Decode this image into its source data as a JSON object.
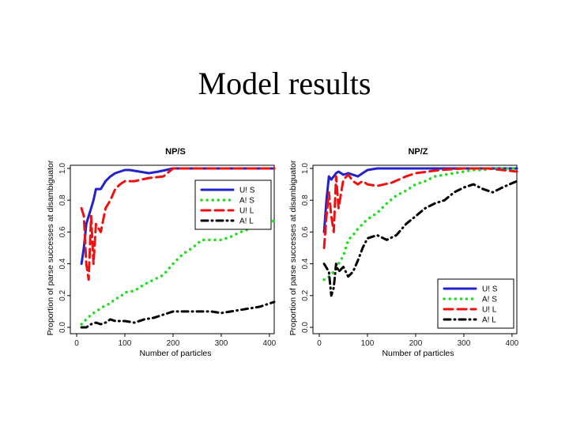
{
  "slide": {
    "title": "Model results"
  },
  "colors": {
    "U_S": "#2222cc",
    "A_S": "#22dd22",
    "U_L": "#ee1111",
    "A_L": "#000000"
  },
  "chart_data": [
    {
      "type": "line",
      "title": "NP/S",
      "xlabel": "Number of particles",
      "ylabel": "Proportion of parse successes at disambiguator",
      "xlim": [
        0,
        410
      ],
      "ylim": [
        0,
        1
      ],
      "xticks": [
        0,
        100,
        200,
        300,
        400
      ],
      "yticks": [
        0.0,
        0.2,
        0.4,
        0.6,
        0.8,
        1.0
      ],
      "legend_position": "center-right",
      "series": [
        {
          "name": "U! S",
          "key": "U_S",
          "style": "solid",
          "points": [
            [
              10,
              0.4
            ],
            [
              15,
              0.5
            ],
            [
              20,
              0.65
            ],
            [
              25,
              0.7
            ],
            [
              30,
              0.75
            ],
            [
              35,
              0.8
            ],
            [
              40,
              0.87
            ],
            [
              50,
              0.87
            ],
            [
              60,
              0.92
            ],
            [
              70,
              0.95
            ],
            [
              80,
              0.97
            ],
            [
              90,
              0.98
            ],
            [
              100,
              0.99
            ],
            [
              110,
              0.99
            ],
            [
              130,
              0.98
            ],
            [
              150,
              0.97
            ],
            [
              170,
              0.98
            ],
            [
              200,
              1.0
            ],
            [
              250,
              1.0
            ],
            [
              300,
              1.0
            ],
            [
              410,
              1.0
            ]
          ]
        },
        {
          "name": "A! S",
          "key": "A_S",
          "style": "dotted",
          "points": [
            [
              10,
              0.02
            ],
            [
              20,
              0.05
            ],
            [
              30,
              0.08
            ],
            [
              40,
              0.1
            ],
            [
              50,
              0.12
            ],
            [
              60,
              0.14
            ],
            [
              70,
              0.15
            ],
            [
              80,
              0.18
            ],
            [
              90,
              0.19
            ],
            [
              100,
              0.22
            ],
            [
              120,
              0.23
            ],
            [
              140,
              0.27
            ],
            [
              160,
              0.3
            ],
            [
              180,
              0.33
            ],
            [
              200,
              0.4
            ],
            [
              220,
              0.46
            ],
            [
              240,
              0.5
            ],
            [
              260,
              0.55
            ],
            [
              280,
              0.55
            ],
            [
              300,
              0.55
            ],
            [
              320,
              0.57
            ],
            [
              340,
              0.6
            ],
            [
              360,
              0.62
            ],
            [
              380,
              0.65
            ],
            [
              410,
              0.67
            ]
          ]
        },
        {
          "name": "U! L",
          "key": "U_L",
          "style": "dashed",
          "points": [
            [
              10,
              0.75
            ],
            [
              15,
              0.7
            ],
            [
              20,
              0.4
            ],
            [
              25,
              0.3
            ],
            [
              30,
              0.7
            ],
            [
              35,
              0.4
            ],
            [
              40,
              0.65
            ],
            [
              50,
              0.6
            ],
            [
              60,
              0.75
            ],
            [
              70,
              0.8
            ],
            [
              80,
              0.87
            ],
            [
              90,
              0.9
            ],
            [
              100,
              0.92
            ],
            [
              120,
              0.92
            ],
            [
              150,
              0.94
            ],
            [
              180,
              0.95
            ],
            [
              200,
              1.0
            ],
            [
              250,
              1.0
            ],
            [
              300,
              1.0
            ],
            [
              410,
              1.0
            ]
          ]
        },
        {
          "name": "A! L",
          "key": "A_L",
          "style": "dashdot",
          "points": [
            [
              10,
              0.0
            ],
            [
              20,
              0.0
            ],
            [
              30,
              0.02
            ],
            [
              40,
              0.03
            ],
            [
              50,
              0.02
            ],
            [
              60,
              0.03
            ],
            [
              70,
              0.05
            ],
            [
              80,
              0.04
            ],
            [
              100,
              0.04
            ],
            [
              120,
              0.03
            ],
            [
              140,
              0.05
            ],
            [
              160,
              0.06
            ],
            [
              180,
              0.08
            ],
            [
              200,
              0.1
            ],
            [
              220,
              0.1
            ],
            [
              240,
              0.1
            ],
            [
              260,
              0.1
            ],
            [
              280,
              0.1
            ],
            [
              300,
              0.09
            ],
            [
              320,
              0.1
            ],
            [
              340,
              0.11
            ],
            [
              360,
              0.12
            ],
            [
              380,
              0.13
            ],
            [
              410,
              0.16
            ]
          ]
        }
      ]
    },
    {
      "type": "line",
      "title": "NP/Z",
      "xlabel": "Number of particles",
      "ylabel": "Proportion of parse successes at disambiguator",
      "xlim": [
        0,
        410
      ],
      "ylim": [
        0,
        1
      ],
      "xticks": [
        0,
        100,
        200,
        300,
        400
      ],
      "yticks": [
        0.0,
        0.2,
        0.4,
        0.6,
        0.8,
        1.0
      ],
      "legend_position": "bottom-right",
      "series": [
        {
          "name": "U! S",
          "key": "U_S",
          "style": "solid",
          "points": [
            [
              10,
              0.6
            ],
            [
              15,
              0.8
            ],
            [
              20,
              0.95
            ],
            [
              25,
              0.93
            ],
            [
              30,
              0.95
            ],
            [
              35,
              0.97
            ],
            [
              40,
              0.98
            ],
            [
              50,
              0.96
            ],
            [
              60,
              0.97
            ],
            [
              70,
              0.96
            ],
            [
              80,
              0.95
            ],
            [
              90,
              0.97
            ],
            [
              100,
              0.99
            ],
            [
              120,
              1.0
            ],
            [
              150,
              1.0
            ],
            [
              200,
              1.0
            ],
            [
              300,
              1.0
            ],
            [
              410,
              1.0
            ]
          ]
        },
        {
          "name": "A! S",
          "key": "A_S",
          "style": "dotted",
          "points": [
            [
              10,
              0.3
            ],
            [
              20,
              0.32
            ],
            [
              30,
              0.35
            ],
            [
              40,
              0.4
            ],
            [
              50,
              0.45
            ],
            [
              60,
              0.55
            ],
            [
              70,
              0.58
            ],
            [
              80,
              0.62
            ],
            [
              90,
              0.65
            ],
            [
              100,
              0.68
            ],
            [
              120,
              0.72
            ],
            [
              140,
              0.78
            ],
            [
              160,
              0.83
            ],
            [
              180,
              0.86
            ],
            [
              200,
              0.9
            ],
            [
              220,
              0.92
            ],
            [
              240,
              0.95
            ],
            [
              260,
              0.96
            ],
            [
              280,
              0.97
            ],
            [
              300,
              0.98
            ],
            [
              320,
              0.99
            ],
            [
              340,
              0.99
            ],
            [
              360,
              1.0
            ],
            [
              410,
              1.0
            ]
          ]
        },
        {
          "name": "U! L",
          "key": "U_L",
          "style": "dashed",
          "points": [
            [
              10,
              0.5
            ],
            [
              15,
              0.7
            ],
            [
              20,
              0.85
            ],
            [
              25,
              0.7
            ],
            [
              30,
              0.6
            ],
            [
              35,
              0.95
            ],
            [
              40,
              0.75
            ],
            [
              50,
              0.93
            ],
            [
              60,
              0.96
            ],
            [
              70,
              0.92
            ],
            [
              80,
              0.9
            ],
            [
              90,
              0.92
            ],
            [
              100,
              0.9
            ],
            [
              120,
              0.89
            ],
            [
              150,
              0.91
            ],
            [
              180,
              0.95
            ],
            [
              200,
              0.97
            ],
            [
              250,
              0.99
            ],
            [
              300,
              1.0
            ],
            [
              350,
              1.0
            ],
            [
              380,
              0.99
            ],
            [
              410,
              0.98
            ]
          ]
        },
        {
          "name": "A! L",
          "key": "A_L",
          "style": "dashdot",
          "points": [
            [
              10,
              0.4
            ],
            [
              20,
              0.35
            ],
            [
              25,
              0.2
            ],
            [
              30,
              0.25
            ],
            [
              35,
              0.4
            ],
            [
              40,
              0.35
            ],
            [
              50,
              0.38
            ],
            [
              60,
              0.32
            ],
            [
              70,
              0.35
            ],
            [
              80,
              0.42
            ],
            [
              90,
              0.5
            ],
            [
              100,
              0.56
            ],
            [
              120,
              0.58
            ],
            [
              140,
              0.55
            ],
            [
              160,
              0.58
            ],
            [
              180,
              0.65
            ],
            [
              200,
              0.7
            ],
            [
              220,
              0.75
            ],
            [
              240,
              0.78
            ],
            [
              260,
              0.8
            ],
            [
              280,
              0.85
            ],
            [
              300,
              0.88
            ],
            [
              320,
              0.9
            ],
            [
              340,
              0.87
            ],
            [
              360,
              0.85
            ],
            [
              380,
              0.88
            ],
            [
              410,
              0.92
            ]
          ]
        }
      ]
    }
  ]
}
